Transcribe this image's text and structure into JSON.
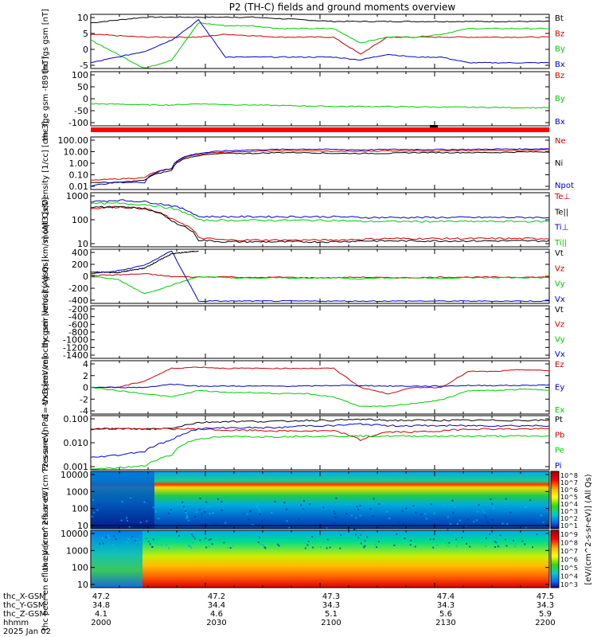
{
  "title": "P2 (TH-C) fields and ground moments overview",
  "footer": {
    "rows": [
      {
        "label": "thc_X-GSM",
        "values": [
          "47.2",
          "47.2",
          "47.3",
          "47.4",
          "47.5"
        ]
      },
      {
        "label": "thc_Y-GSM",
        "values": [
          "34.8",
          "34.4",
          "34.3",
          "34.3",
          "34.3"
        ]
      },
      {
        "label": "thc_Z-GSM",
        "values": [
          "4.1",
          "4.6",
          "5.1",
          "5.6",
          "5.9"
        ]
      },
      {
        "label": "hhmm",
        "values": [
          "2000",
          "2030",
          "2100",
          "2130",
          "2200"
        ]
      }
    ],
    "date": "2025 Jan 02"
  },
  "colorbar": {
    "label": "[eV/(cm^2-s-sr-eV)] (All Qs)",
    "top_ticks": [
      "10^8",
      "10^7",
      "10^6",
      "10^5",
      "10^4",
      "10^3",
      "10^2",
      "10^1"
    ],
    "bottom_ticks": [
      "10^9",
      "10^8",
      "10^7",
      "10^6",
      "10^5",
      "10^4",
      "10^3"
    ]
  },
  "chart_data": [
    {
      "type": "line",
      "panel": "fgs_gsm",
      "ylabel": "thc fgs gsm [nT]",
      "yticks": [
        "10",
        "5",
        "0",
        "-5"
      ],
      "ylim": [
        -8,
        11
      ],
      "series": [
        {
          "name": "Bt",
          "color": "#000000",
          "values": [
            8,
            9,
            10,
            10,
            10,
            10,
            10,
            9.5,
            9,
            8.5,
            8.5,
            8.5,
            8.5,
            8.5,
            8.5,
            8.5,
            8.5,
            8.5
          ]
        },
        {
          "name": "Bz",
          "color": "#cc0000",
          "values": [
            4,
            3.5,
            3,
            3,
            3,
            4,
            3.5,
            3,
            3,
            3,
            -3,
            3,
            3,
            3,
            3,
            3,
            3,
            3
          ]
        },
        {
          "name": "By",
          "color": "#00cc00",
          "values": [
            2,
            -3,
            -8,
            -5,
            8,
            7,
            7,
            6,
            6,
            6,
            1,
            3,
            3,
            4,
            6,
            6,
            6,
            6
          ]
        },
        {
          "name": "Bx",
          "color": "#0000cc",
          "values": [
            -6,
            -4,
            -2,
            2,
            9,
            -4,
            -4,
            -4,
            -4,
            -4,
            -5,
            -3,
            -4,
            -4,
            -6,
            -6,
            -6,
            -6
          ]
        }
      ]
    },
    {
      "type": "line",
      "panel": "fge_gsm_minus_t89",
      "ylabel": "thc fge gsm -t89 [nT]",
      "yticks": [
        "100",
        "50",
        "0",
        "-50",
        "-100"
      ],
      "ylim": [
        -140,
        105
      ],
      "series": [
        {
          "name": "Bz",
          "color": "#cc0000",
          "values": []
        },
        {
          "name": "By",
          "color": "#00cc00",
          "values": [
            -40,
            -42,
            -45,
            -46,
            -40,
            -44,
            -46,
            -48,
            -50,
            -52,
            -52,
            -53,
            -54,
            -55,
            -56,
            -57,
            -58,
            -58
          ]
        },
        {
          "name": "Bx",
          "color": "#0000cc",
          "values": []
        }
      ]
    },
    {
      "type": "line",
      "panel": "density",
      "log": true,
      "ylabel": "Density [1/cc] [cm-3]",
      "yticks": [
        "100.00",
        "10.00",
        "1.00",
        "0.10",
        "0.01"
      ],
      "ylim": [
        0.005,
        150
      ],
      "series": [
        {
          "name": "Ne",
          "color": "#cc0000",
          "values": [
            0.03,
            0.04,
            0.05,
            0.3,
            5,
            8,
            9,
            10,
            10,
            9,
            9,
            10,
            10,
            10,
            10,
            11,
            11,
            12
          ]
        },
        {
          "name": "Ni",
          "color": "#000000",
          "values": [
            0.02,
            0.02,
            0.03,
            0.2,
            4,
            6,
            6,
            7,
            7,
            6,
            6,
            6,
            7,
            7,
            7,
            7,
            8,
            8
          ]
        },
        {
          "name": "Npot",
          "color": "#0000cc",
          "values": [
            0.01,
            0.02,
            0.02,
            0.3,
            6,
            10,
            12,
            13,
            14,
            13,
            12,
            13,
            13,
            13,
            13,
            14,
            14,
            15
          ]
        }
      ]
    },
    {
      "type": "line",
      "panel": "temperature",
      "log": true,
      "ylabel": "moqt3 [eV]",
      "yticks": [
        "1000",
        "100",
        "10"
      ],
      "ylim": [
        6,
        1500
      ],
      "series": [
        {
          "name": "Te⊥",
          "color": "#cc0000",
          "values": [
            300,
            350,
            300,
            100,
            15,
            12,
            12,
            12,
            12,
            12,
            13,
            14,
            14,
            14,
            14,
            14,
            14,
            14
          ]
        },
        {
          "name": "Te||",
          "color": "#000000",
          "values": [
            350,
            350,
            300,
            80,
            12,
            10,
            10,
            10,
            10,
            10,
            11,
            11,
            11,
            11,
            11,
            11,
            11,
            11
          ]
        },
        {
          "name": "Ti⊥",
          "color": "#0000cc",
          "values": [
            600,
            700,
            600,
            400,
            130,
            130,
            130,
            130,
            130,
            130,
            120,
            120,
            120,
            120,
            120,
            120,
            120,
            120
          ]
        },
        {
          "name": "Ti||",
          "color": "#00cc00",
          "values": [
            500,
            500,
            450,
            300,
            90,
            90,
            90,
            90,
            90,
            90,
            80,
            80,
            80,
            80,
            80,
            80,
            80,
            80
          ]
        }
      ]
    },
    {
      "type": "line",
      "panel": "peir_velocity",
      "ylabel": "thc peir velocity gsm [km/s] (All Qs)",
      "yticks": [
        "400",
        "200",
        "0",
        "-200",
        "-400"
      ],
      "ylim": [
        -470,
        480
      ],
      "series": [
        {
          "name": "Vt",
          "color": "#000000",
          "values": [
            80,
            70,
            150,
            400,
            450
          ]
        },
        {
          "name": "Vz",
          "color": "#cc0000",
          "values": [
            20,
            30,
            50,
            0,
            -10,
            0,
            -20,
            -10,
            -20,
            -20,
            -10,
            -20,
            -20,
            -10,
            -10,
            -10,
            -10,
            -10
          ]
        },
        {
          "name": "Vy",
          "color": "#00cc00",
          "values": [
            0,
            -50,
            -300,
            -150,
            0,
            -20,
            -30,
            -20,
            -30,
            -20,
            -40,
            -20,
            -20,
            -30,
            -20,
            -20,
            -20,
            -20
          ]
        },
        {
          "name": "Vx",
          "color": "#0000cc",
          "values": [
            50,
            100,
            200,
            450,
            -430,
            -430,
            -430,
            -430,
            -430,
            -430,
            -430,
            -430,
            -430,
            -430,
            -430,
            -430,
            -430,
            -430
          ]
        }
      ]
    },
    {
      "type": "line",
      "panel": "peer_velocity",
      "ylabel": "thc peer velocity gsm [km/s] (All Qs)",
      "yticks": [
        "-200",
        "-400",
        "-600",
        "-800",
        "-1000",
        "-1200",
        "-1400"
      ],
      "ylim": [
        -1480,
        -100
      ],
      "series": [
        {
          "name": "Vt",
          "color": "#000000",
          "values": []
        },
        {
          "name": "Vz",
          "color": "#cc0000",
          "values": []
        },
        {
          "name": "Vy",
          "color": "#00cc00",
          "values": []
        },
        {
          "name": "Vx",
          "color": "#0000cc",
          "values": []
        }
      ]
    },
    {
      "type": "line",
      "panel": "e_field",
      "ylabel": "E=-VxB [mV/m]",
      "yticks": [
        "4",
        "2",
        "0",
        "-2",
        "-4"
      ],
      "ylim": [
        -4.2,
        4.2
      ],
      "series": [
        {
          "name": "Ez",
          "color": "#cc0000",
          "values": [
            0,
            0,
            1,
            3,
            3.2,
            3,
            3,
            3,
            3,
            3,
            0,
            -1,
            0,
            0,
            2.5,
            2.5,
            2.8,
            2.6
          ]
        },
        {
          "name": "Ey",
          "color": "#0000cc",
          "values": [
            0,
            0,
            0,
            0.5,
            0.2,
            0.2,
            0.2,
            0.2,
            0.2,
            0.3,
            0.3,
            0.2,
            0.2,
            0.2,
            0.3,
            0.3,
            0.3,
            0.4
          ]
        },
        {
          "name": "Ex",
          "color": "#00cc00",
          "values": [
            0,
            -0.5,
            -1,
            -1.5,
            -0.5,
            -0.8,
            -0.8,
            -1,
            -1,
            -1.5,
            -3,
            -3,
            -2.5,
            -2,
            -0.5,
            -0.5,
            -0.3,
            -0.4
          ]
        }
      ]
    },
    {
      "type": "line",
      "panel": "pressure",
      "log": true,
      "ylabel": "Pressure [nPa]",
      "yticks": [
        "0.100",
        "0.010",
        "0.001"
      ],
      "ylim": [
        0.0004,
        0.15
      ],
      "series": [
        {
          "name": "Pt",
          "color": "#000000",
          "values": [
            0.035,
            0.036,
            0.035,
            0.038,
            0.07,
            0.08,
            0.08,
            0.08,
            0.09,
            0.09,
            0.1,
            0.09,
            0.09,
            0.09,
            0.09,
            0.09,
            0.09,
            0.09
          ]
        },
        {
          "name": "Pb",
          "color": "#cc0000",
          "values": [
            0.035,
            0.036,
            0.035,
            0.035,
            0.035,
            0.03,
            0.03,
            0.028,
            0.028,
            0.028,
            0.01,
            0.025,
            0.025,
            0.028,
            0.035,
            0.035,
            0.035,
            0.035
          ]
        },
        {
          "name": "Pe",
          "color": "#00cc00",
          "values": [
            0.0004,
            0.0005,
            0.0006,
            0.002,
            0.012,
            0.015,
            0.015,
            0.015,
            0.016,
            0.016,
            0.016,
            0.016,
            0.016,
            0.016,
            0.016,
            0.016,
            0.016,
            0.016
          ]
        },
        {
          "name": "Pi",
          "color": "#0000cc",
          "values": [
            0.0015,
            0.002,
            0.003,
            0.01,
            0.035,
            0.04,
            0.04,
            0.04,
            0.05,
            0.05,
            0.06,
            0.05,
            0.05,
            0.05,
            0.05,
            0.05,
            0.05,
            0.05
          ]
        }
      ]
    },
    {
      "type": "heatmap",
      "panel": "peir_spectrogram",
      "ylabel": "thc peir en eflux eV (cm^2-s-sr-eV)",
      "yticks": [
        "10000",
        "1000",
        "100",
        "10"
      ]
    },
    {
      "type": "heatmap",
      "panel": "peer_spectrogram",
      "ylabel": "thc peer en eflux eV (cm^2-s-sr-eV)",
      "yticks": [
        "10000",
        "1000",
        "100",
        "10"
      ]
    }
  ]
}
